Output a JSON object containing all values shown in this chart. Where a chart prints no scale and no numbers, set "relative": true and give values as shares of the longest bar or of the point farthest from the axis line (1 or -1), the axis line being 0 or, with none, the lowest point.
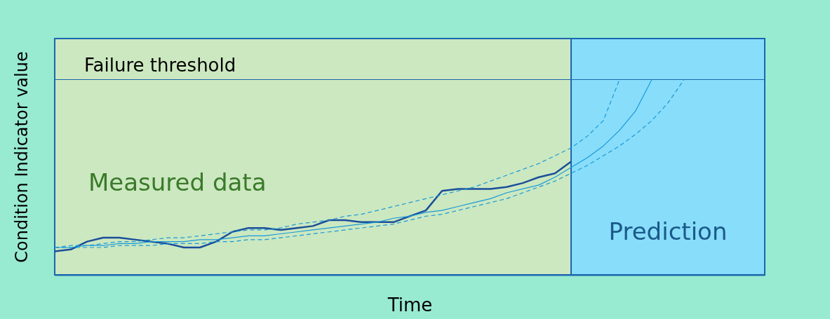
{
  "chart_data": {
    "type": "line",
    "xlabel": "Time",
    "ylabel": "Condition Indicator value",
    "relative": true,
    "tick_labels": false,
    "marker": "none",
    "categories": [
      null,
      null,
      null,
      null,
      null,
      null,
      null,
      null,
      null,
      null,
      null,
      null,
      null,
      null,
      null,
      null,
      null,
      null,
      null,
      null,
      null,
      null,
      null,
      null,
      null,
      null,
      null,
      null,
      null,
      null,
      null,
      null,
      null,
      null,
      null,
      null,
      null,
      null,
      null,
      null,
      null,
      null,
      null,
      null,
      null
    ],
    "series": [
      {
        "color": "#1a4e9a",
        "line_style": "solid",
        "values": [
          0.12,
          0.13,
          0.17,
          0.19,
          0.19,
          0.18,
          0.17,
          0.16,
          0.14,
          0.14,
          0.17,
          0.22,
          0.24,
          0.24,
          0.23,
          0.24,
          0.25,
          0.28,
          0.28,
          0.27,
          0.27,
          0.27,
          0.3,
          0.33,
          0.43,
          0.44,
          0.44,
          0.44,
          0.45,
          0.47,
          0.5,
          0.52,
          0.58,
          null,
          null,
          null,
          null,
          null,
          null,
          null,
          null,
          null,
          null,
          null,
          null
        ]
      },
      {
        "color": "#1a9ad8",
        "line_style": "solid",
        "values": [
          0.14,
          0.14,
          0.15,
          0.15,
          0.16,
          0.16,
          0.17,
          0.17,
          0.17,
          0.18,
          0.18,
          0.19,
          0.2,
          0.2,
          0.21,
          0.22,
          0.23,
          0.24,
          0.25,
          0.26,
          0.27,
          0.29,
          0.3,
          0.32,
          0.33,
          0.35,
          0.37,
          0.39,
          0.42,
          0.44,
          0.46,
          0.5,
          0.55,
          0.6,
          0.66,
          0.74,
          0.84,
          1.0,
          null,
          null,
          null,
          null,
          null,
          null,
          null
        ]
      },
      {
        "color": "#1a9ad8",
        "line_style": "dashed",
        "values": [
          0.14,
          0.15,
          0.15,
          0.16,
          0.17,
          0.17,
          0.18,
          0.19,
          0.19,
          0.2,
          0.21,
          0.22,
          0.23,
          0.23,
          0.24,
          0.26,
          0.27,
          0.28,
          0.3,
          0.31,
          0.33,
          0.35,
          0.37,
          0.39,
          0.41,
          0.43,
          0.45,
          0.48,
          0.51,
          0.54,
          0.57,
          0.61,
          0.65,
          0.71,
          0.79,
          1.0,
          null,
          null,
          null,
          null,
          null,
          null,
          null,
          null,
          null
        ]
      },
      {
        "color": "#1a9ad8",
        "line_style": "dashed",
        "values": [
          0.14,
          0.14,
          0.14,
          0.14,
          0.15,
          0.15,
          0.15,
          0.16,
          0.16,
          0.16,
          0.17,
          0.17,
          0.18,
          0.18,
          0.19,
          0.2,
          0.21,
          0.22,
          0.23,
          0.24,
          0.25,
          0.26,
          0.28,
          0.3,
          0.31,
          0.33,
          0.35,
          0.37,
          0.39,
          0.42,
          0.45,
          0.48,
          0.52,
          0.56,
          0.61,
          0.66,
          0.72,
          0.79,
          0.88,
          1.0,
          null,
          null,
          null,
          null,
          null
        ]
      }
    ],
    "ref_lines": [
      {
        "axis": "y",
        "value": 1.0,
        "label": "Failure threshold",
        "color": "#1a66b0"
      }
    ],
    "annotations": [
      "Measured data",
      "Prediction"
    ]
  }
}
